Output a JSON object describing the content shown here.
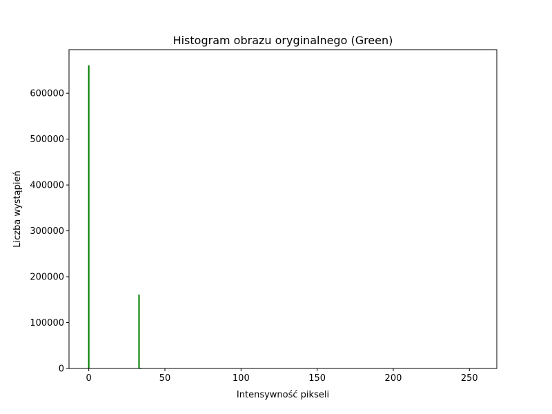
{
  "chart_data": {
    "type": "bar",
    "title": "Histogram obrazu oryginalnego (Green)",
    "xlabel": "Intensywność pikseli",
    "ylabel": "Liczba wystąpień",
    "xlim": [
      -13,
      268
    ],
    "ylim": [
      0,
      695000
    ],
    "x_ticks": [
      0,
      50,
      100,
      150,
      200,
      250
    ],
    "y_ticks": [
      0,
      100000,
      200000,
      300000,
      400000,
      500000,
      600000
    ],
    "bar_color": "#008000",
    "bins": [
      {
        "x": 0,
        "count": 661000
      },
      {
        "x": 33,
        "count": 161000
      },
      {
        "x": 34,
        "count": 1500
      }
    ],
    "grid": false
  }
}
